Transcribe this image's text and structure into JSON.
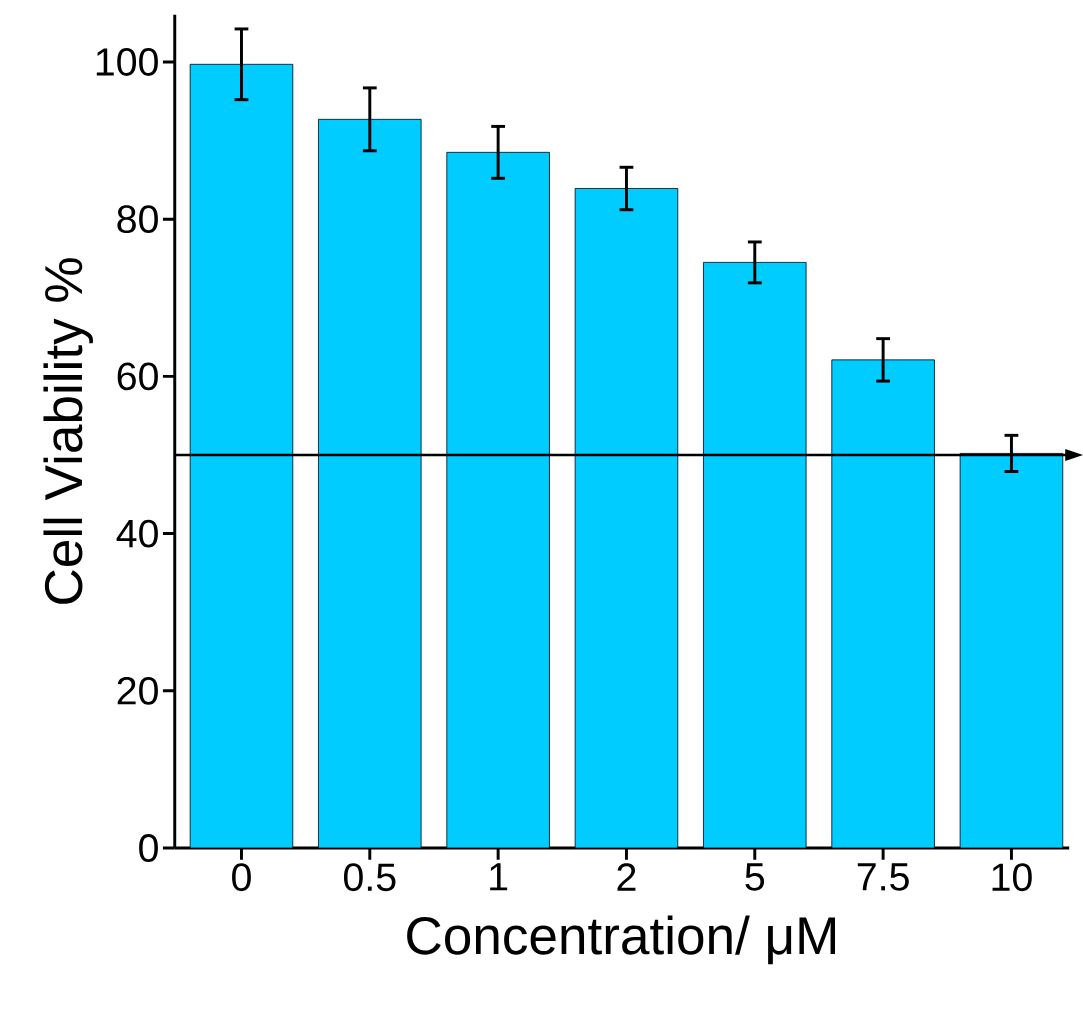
{
  "chart_data": {
    "type": "bar",
    "xlabel": "Concentration/ μM",
    "ylabel": "Cell Viability %",
    "categories": [
      "0",
      "0.5",
      "1",
      "2",
      "5",
      "7.5",
      "10"
    ],
    "values": [
      99.7,
      92.7,
      88.5,
      83.9,
      74.5,
      62.1,
      50.2
    ],
    "errors": [
      4.5,
      4.0,
      3.3,
      2.7,
      2.6,
      2.7,
      2.3
    ],
    "color": "#00ccff",
    "ylim": [
      0,
      106
    ],
    "yticks": [
      0,
      20,
      40,
      60,
      80,
      100
    ],
    "ref_lines": [
      {
        "axis": "y",
        "value": 50,
        "color": "#000000"
      }
    ]
  }
}
